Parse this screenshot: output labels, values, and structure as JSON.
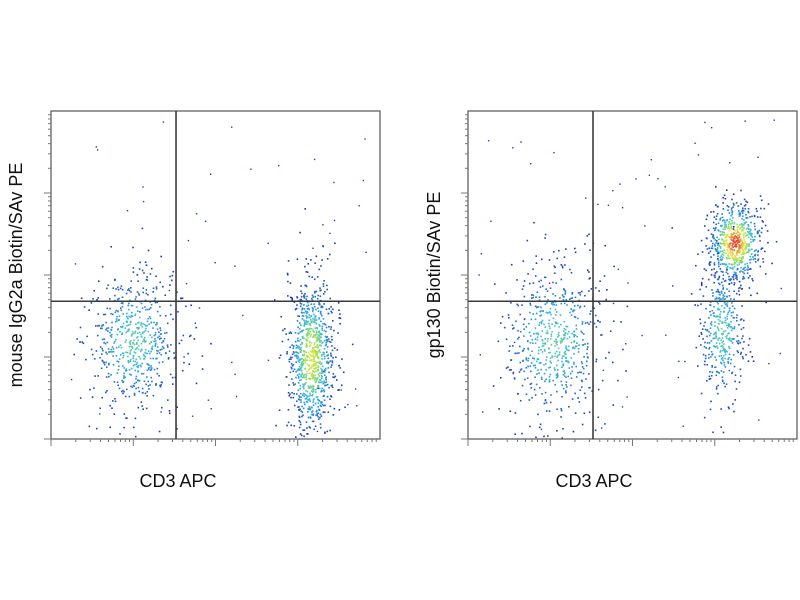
{
  "chart_data": [
    {
      "type": "scatter",
      "subtype": "flow-cytometry density dot plot with quadrant gates",
      "xlabel": "CD3 APC",
      "ylabel": "mouse IgG2a Biotin/SAv PE",
      "x_scale": "log",
      "y_scale": "log",
      "xlim": [
        0,
        1
      ],
      "ylim": [
        0,
        1
      ],
      "quadrant_gate": {
        "x": 0.38,
        "y": 0.42
      },
      "populations": [
        {
          "description": "CD3-negative cells",
          "x_center": 0.25,
          "y_center": 0.3,
          "x_spread": 0.07,
          "y_spread": 0.11,
          "relative_size": 0.4,
          "peak_color": "#2fb4e6"
        },
        {
          "description": "CD3-positive cells",
          "x_center": 0.79,
          "y_center": 0.25,
          "x_spread": 0.035,
          "y_spread": 0.12,
          "relative_size": 0.6,
          "peak_color": "#8ee05a"
        }
      ],
      "grid": false,
      "legend": "none"
    },
    {
      "type": "scatter",
      "subtype": "flow-cytometry density dot plot with quadrant gates",
      "xlabel": "CD3 APC",
      "ylabel": "gp130 Biotin/SAv PE",
      "x_scale": "log",
      "y_scale": "log",
      "xlim": [
        0,
        1
      ],
      "ylim": [
        0,
        1
      ],
      "quadrant_gate": {
        "x": 0.38,
        "y": 0.42
      },
      "populations": [
        {
          "description": "CD3-negative cells",
          "x_center": 0.26,
          "y_center": 0.3,
          "x_spread": 0.08,
          "y_spread": 0.12,
          "relative_size": 0.4,
          "peak_color": "#2fb4e6"
        },
        {
          "description": "CD3-positive gp130-high cells",
          "x_center": 0.81,
          "y_center": 0.6,
          "x_spread": 0.04,
          "y_spread": 0.06,
          "relative_size": 0.42,
          "peak_color": "#e8452a"
        },
        {
          "description": "CD3-positive gp130-low tail",
          "x_center": 0.77,
          "y_center": 0.33,
          "x_spread": 0.035,
          "y_spread": 0.11,
          "relative_size": 0.25,
          "peak_color": "#2fb4e6"
        }
      ],
      "grid": false,
      "legend": "none"
    }
  ],
  "colors": {
    "density_low": "#1a2db8",
    "density_mid": "#2fb4e6",
    "density_high": "#8ee05a",
    "density_peak": "#e8452a",
    "gate": "#3a3a3a",
    "frame": "#555555"
  }
}
